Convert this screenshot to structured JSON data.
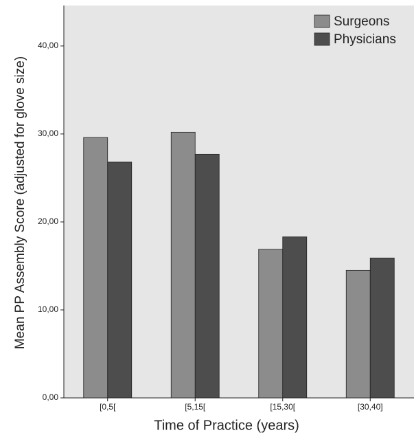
{
  "chart_data": {
    "type": "bar",
    "xlabel": "Time of Practice (years)",
    "ylabel": "Mean PP Assembly Score (adjusted for glove size)",
    "categories": [
      "[0,5[",
      "[5,15[",
      "[15,30[",
      "[30,40]"
    ],
    "series": [
      {
        "name": "Surgeons",
        "color": "#8c8c8c",
        "values": [
          29.6,
          30.2,
          16.9,
          14.5
        ]
      },
      {
        "name": "Physicians",
        "color": "#4d4d4d",
        "values": [
          26.8,
          27.7,
          18.3,
          15.9
        ]
      }
    ],
    "ylim": [
      0,
      44.6
    ],
    "yticks": [
      {
        "value": 0,
        "label": "0,00"
      },
      {
        "value": 10,
        "label": "10,00"
      },
      {
        "value": 20,
        "label": "20,00"
      },
      {
        "value": 30,
        "label": "30,00"
      },
      {
        "value": 40,
        "label": "40,00"
      }
    ],
    "legend": "top-right"
  }
}
